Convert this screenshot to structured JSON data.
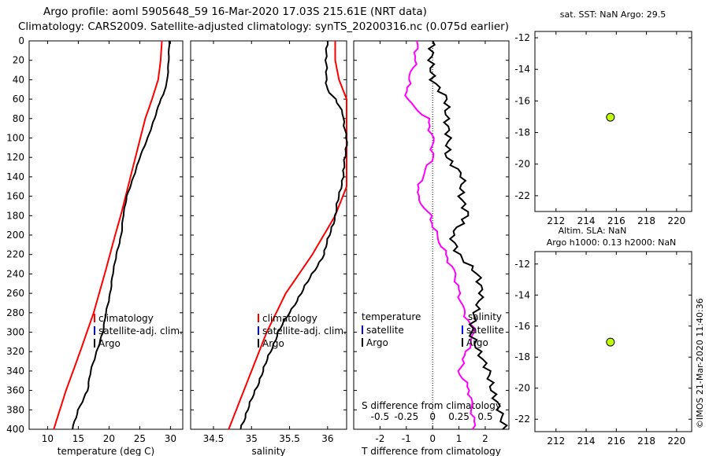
{
  "titles": {
    "line1": "Argo profile: aoml 5905648_59 16-Mar-2020 17.03S 215.61E (NRT data)",
    "line2": "Climatology: CARS2009. Satellite-adjusted climatology: synTS_20200316.nc (0.075d earlier)"
  },
  "credit": "©IMOS 21-Mar-2020 11:40:36",
  "colors": {
    "climatology": "#ff0000",
    "satellite": "#0000ff",
    "argo": "#000000",
    "tdiff": "#ff00ff",
    "dot": "#bfff00"
  },
  "chart_data": [
    {
      "id": "temperature",
      "type": "line",
      "xlabel": "temperature (deg C)",
      "xlim": [
        7,
        32
      ],
      "ylim": [
        400,
        0
      ],
      "xticks": [
        10,
        15,
        20,
        25,
        30
      ],
      "yticks": [
        0,
        20,
        40,
        60,
        80,
        100,
        120,
        140,
        160,
        180,
        200,
        220,
        240,
        260,
        280,
        300,
        320,
        340,
        360,
        380,
        400
      ],
      "legend": [
        "climatology",
        "satellite-adj. clim.",
        "Argo"
      ],
      "series": [
        {
          "name": "climatology",
          "depth": [
            0,
            20,
            40,
            60,
            80,
            100,
            120,
            140,
            160,
            180,
            200,
            240,
            280,
            320,
            360,
            400
          ],
          "values": [
            28.6,
            28.4,
            28.0,
            27.0,
            25.9,
            25.1,
            24.3,
            23.5,
            22.7,
            21.9,
            21.0,
            19.3,
            17.5,
            15.3,
            13.0,
            11.0
          ]
        },
        {
          "name": "Argo",
          "depth": [
            0,
            20,
            40,
            55,
            60,
            80,
            100,
            120,
            140,
            160,
            180,
            200,
            220,
            240,
            260,
            280,
            300,
            320,
            340,
            360,
            380,
            400
          ],
          "values": [
            29.8,
            29.7,
            29.5,
            28.9,
            28.4,
            27.4,
            26.3,
            25.0,
            24.0,
            22.9,
            22.3,
            22.0,
            21.2,
            20.6,
            20.2,
            19.5,
            19.0,
            18.0,
            17.0,
            16.5,
            15.0,
            14.0
          ]
        }
      ]
    },
    {
      "id": "salinity",
      "type": "line",
      "xlabel": "salinity",
      "xlim": [
        34.2,
        36.25
      ],
      "ylim": [
        400,
        0
      ],
      "xticks": [
        34.5,
        35,
        35.5,
        36
      ],
      "legend": [
        "climatology",
        "satellite-adj. clim.",
        "Argo"
      ],
      "series": [
        {
          "name": "climatology",
          "depth": [
            0,
            20,
            40,
            50,
            60,
            100,
            150,
            180,
            220,
            260,
            300,
            340,
            380,
            400
          ],
          "values": [
            36.1,
            36.1,
            36.15,
            36.2,
            36.25,
            36.25,
            36.25,
            36.1,
            35.8,
            35.45,
            35.2,
            35.0,
            34.8,
            34.7
          ]
        },
        {
          "name": "Argo",
          "depth": [
            0,
            20,
            40,
            50,
            60,
            75,
            100,
            130,
            140,
            180,
            220,
            260,
            300,
            340,
            380,
            400
          ],
          "values": [
            36.0,
            35.98,
            35.98,
            36.0,
            36.1,
            36.2,
            36.25,
            36.22,
            36.2,
            36.1,
            35.95,
            35.65,
            35.35,
            35.15,
            34.95,
            34.85
          ]
        }
      ]
    },
    {
      "id": "difference",
      "type": "line",
      "xlabel": "T difference from climatology",
      "xlim": [
        -3,
        2.9
      ],
      "ylim": [
        400,
        0
      ],
      "xticks": [
        -2,
        -1,
        0,
        1,
        2
      ],
      "top_xlabel": "S difference from climatology",
      "top_xticks": [
        "-0.5",
        "-0.25",
        "0",
        "0.25",
        "0.5"
      ],
      "legend": [
        "temperature",
        "satellite",
        "Argo",
        "salinity",
        "satellite",
        "Argo"
      ],
      "series": [
        {
          "name": "T difference",
          "depth": [
            0,
            20,
            40,
            60,
            80,
            100,
            120,
            140,
            160,
            180,
            200,
            220,
            240,
            260,
            280,
            300,
            320,
            340,
            360,
            380,
            400
          ],
          "values": [
            -0.6,
            -0.65,
            -0.9,
            -1.0,
            -0.2,
            0.0,
            0.0,
            -0.4,
            -0.6,
            -0.1,
            0.15,
            0.5,
            0.85,
            1.0,
            1.2,
            1.6,
            1.3,
            1.0,
            1.4,
            1.5,
            1.6
          ]
        },
        {
          "name": "S difference",
          "depth": [
            0,
            20,
            40,
            60,
            80,
            100,
            120,
            140,
            160,
            180,
            200,
            220,
            240,
            260,
            280,
            300,
            320,
            340,
            360,
            380,
            400
          ],
          "values": [
            -0.05,
            -0.06,
            -0.04,
            0.1,
            0.1,
            0.12,
            0.1,
            0.25,
            0.22,
            0.28,
            0.12,
            0.18,
            0.36,
            0.4,
            0.34,
            0.3,
            0.38,
            0.48,
            0.52,
            0.6,
            0.65
          ]
        }
      ]
    },
    {
      "id": "map-sst",
      "type": "scatter",
      "title": "sat. SST: NaN Argo: 29.5",
      "xlim": [
        210.6,
        221
      ],
      "ylim": [
        -23,
        -11.6
      ],
      "xticks": [
        212,
        214,
        216,
        218,
        220
      ],
      "yticks": [
        -12,
        -14,
        -16,
        -18,
        -20,
        -22
      ],
      "points": [
        {
          "x": 215.61,
          "y": -17.03
        }
      ]
    },
    {
      "id": "map-sla",
      "type": "scatter",
      "title1": "Altim. SLA: NaN",
      "title2": "Argo h1000: 0.13 h2000: NaN",
      "xlim": [
        210.6,
        221
      ],
      "ylim": [
        -22.8,
        -11.2
      ],
      "xticks": [
        212,
        214,
        216,
        218,
        220
      ],
      "yticks": [
        -12,
        -14,
        -16,
        -18,
        -20,
        -22
      ],
      "points": [
        {
          "x": 215.61,
          "y": -17.03
        }
      ]
    }
  ]
}
